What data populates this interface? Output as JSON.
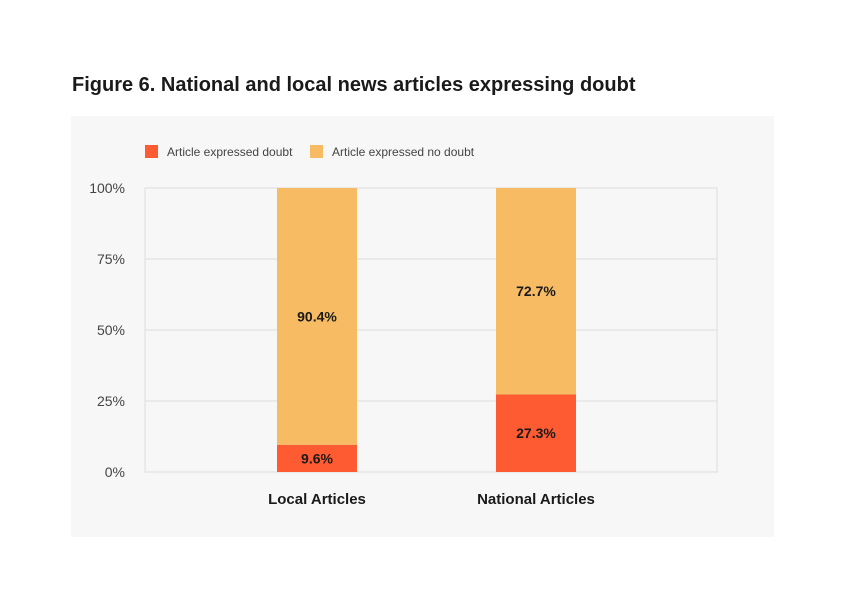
{
  "chart_data": {
    "type": "bar",
    "stacked": true,
    "title": "Figure 6. National and local news articles expressing doubt",
    "categories": [
      "Local Articles",
      "National Articles"
    ],
    "series": [
      {
        "name": "Article expressed doubt",
        "color": "#ff5b33",
        "values": [
          9.6,
          27.3
        ],
        "labels": [
          "9.6%",
          "27.3%"
        ]
      },
      {
        "name": "Article expressed no doubt",
        "color": "#f6bb63",
        "values": [
          90.4,
          72.7
        ],
        "labels": [
          "90.4%",
          "72.7%"
        ]
      }
    ],
    "y_ticks": [
      {
        "value": 0,
        "label": "0%"
      },
      {
        "value": 25,
        "label": "25%"
      },
      {
        "value": 50,
        "label": "50%"
      },
      {
        "value": 75,
        "label": "75%"
      },
      {
        "value": 100,
        "label": "100%"
      }
    ],
    "ylim": [
      0,
      100
    ],
    "xlabel": "",
    "ylabel": "",
    "legend_position": "top-left",
    "grid": true
  }
}
